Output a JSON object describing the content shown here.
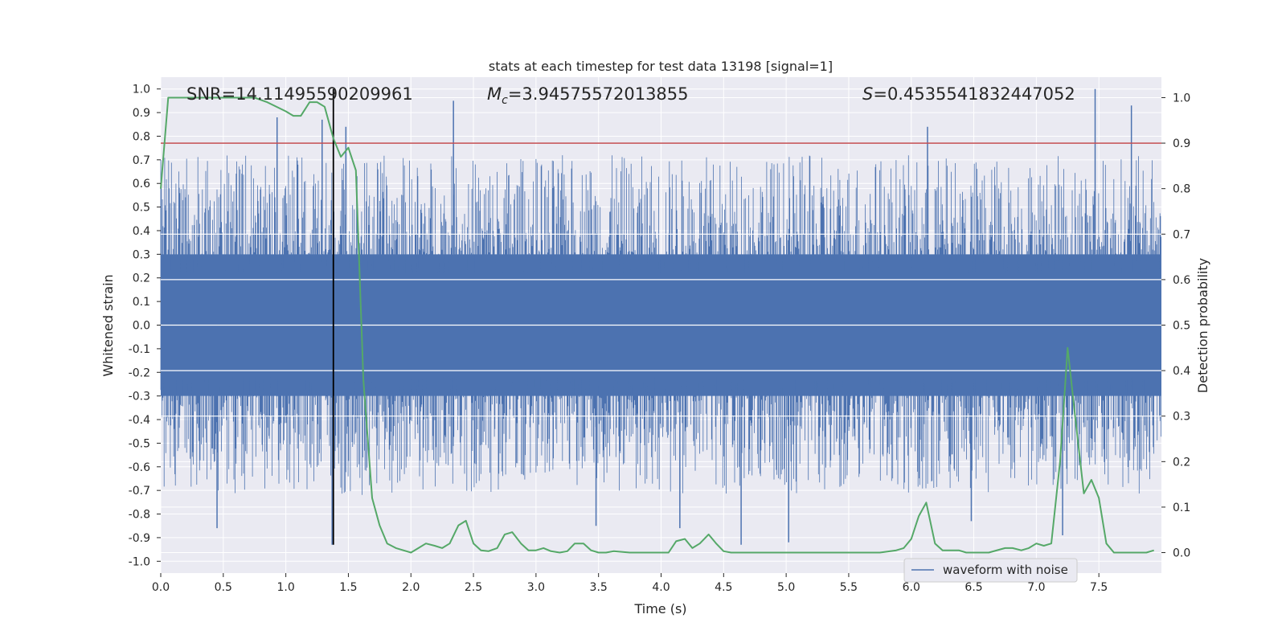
{
  "chart_data": {
    "type": "line",
    "title": "stats at each timestep for test data 13198 [signal=1]",
    "xlabel": "Time (s)",
    "ylabel_left": "Whitened strain",
    "ylabel_right": "Detection probability",
    "xlim": [
      0.0,
      8.0
    ],
    "ylim_left": [
      -1.05,
      1.05
    ],
    "ylim_right": [
      -0.045,
      1.045
    ],
    "x_ticks": [
      "0.0",
      "0.5",
      "1.0",
      "1.5",
      "2.0",
      "2.5",
      "3.0",
      "3.5",
      "4.0",
      "4.5",
      "5.0",
      "5.5",
      "6.0",
      "6.5",
      "7.0",
      "7.5"
    ],
    "y_left_ticks": [
      "-1.0",
      "-0.9",
      "-0.8",
      "-0.7",
      "-0.6",
      "-0.5",
      "-0.4",
      "-0.3",
      "-0.2",
      "-0.1",
      "0.0",
      "0.1",
      "0.2",
      "0.3",
      "0.4",
      "0.5",
      "0.6",
      "0.7",
      "0.8",
      "0.9",
      "1.0"
    ],
    "y_right_ticks": [
      "0.0",
      "0.1",
      "0.2",
      "0.3",
      "0.4",
      "0.5",
      "0.6",
      "0.7",
      "0.8",
      "0.9",
      "1.0"
    ],
    "grid": true,
    "legend_position": "lower-right",
    "annotations": {
      "snr": {
        "prefix": "SNR",
        "value": "=14.11495590209961"
      },
      "mc": {
        "symbol": "M",
        "subscript": "c",
        "value": "=3.94575572013855"
      },
      "s": {
        "symbol": "S",
        "value": "=0.4535541832447052"
      }
    },
    "threshold_right": 0.9,
    "event_time": 1.38,
    "series": [
      {
        "name": "waveform with noise",
        "axis": "left",
        "color": "#4c72b0",
        "kind": "noise_band",
        "band_core": 0.3,
        "band_extent": 0.45,
        "notable_spikes": [
          {
            "x": 0.93,
            "y": 0.88
          },
          {
            "x": 1.29,
            "y": 0.87
          },
          {
            "x": 1.48,
            "y": 0.84
          },
          {
            "x": 2.34,
            "y": 0.95
          },
          {
            "x": 6.13,
            "y": 0.84
          },
          {
            "x": 7.47,
            "y": 1.0
          },
          {
            "x": 7.76,
            "y": 0.93
          },
          {
            "x": 0.45,
            "y": -0.86
          },
          {
            "x": 1.37,
            "y": -0.93
          },
          {
            "x": 3.48,
            "y": -0.85
          },
          {
            "x": 4.15,
            "y": -0.86
          },
          {
            "x": 4.64,
            "y": -0.93
          },
          {
            "x": 5.02,
            "y": -0.92
          },
          {
            "x": 6.48,
            "y": -0.83
          },
          {
            "x": 7.21,
            "y": -0.89
          }
        ]
      },
      {
        "name": "",
        "axis": "right",
        "color": "#55a868",
        "x": [
          0.0,
          0.06,
          0.12,
          0.25,
          0.5,
          0.75,
          0.85,
          1.0,
          1.06,
          1.12,
          1.19,
          1.25,
          1.31,
          1.38,
          1.44,
          1.5,
          1.56,
          1.62,
          1.69,
          1.75,
          1.81,
          1.88,
          2.0,
          2.06,
          2.12,
          2.19,
          2.25,
          2.31,
          2.38,
          2.44,
          2.5,
          2.56,
          2.62,
          2.69,
          2.75,
          2.81,
          2.88,
          2.94,
          3.0,
          3.06,
          3.12,
          3.19,
          3.25,
          3.31,
          3.38,
          3.44,
          3.5,
          3.56,
          3.62,
          3.75,
          3.88,
          4.0,
          4.06,
          4.12,
          4.19,
          4.25,
          4.31,
          4.38,
          4.44,
          4.5,
          4.56,
          4.62,
          4.75,
          5.0,
          5.25,
          5.5,
          5.75,
          5.88,
          5.94,
          6.0,
          6.06,
          6.12,
          6.19,
          6.25,
          6.31,
          6.38,
          6.44,
          6.5,
          6.62,
          6.75,
          6.81,
          6.88,
          6.94,
          7.0,
          7.06,
          7.12,
          7.19,
          7.25,
          7.31,
          7.38,
          7.44,
          7.5,
          7.56,
          7.62,
          7.75,
          7.88,
          7.94
        ],
        "y": [
          0.8,
          1.0,
          1.0,
          1.0,
          1.0,
          1.0,
          0.99,
          0.97,
          0.96,
          0.96,
          0.99,
          0.99,
          0.98,
          0.91,
          0.87,
          0.89,
          0.84,
          0.38,
          0.12,
          0.06,
          0.02,
          0.01,
          0.0,
          0.01,
          0.02,
          0.015,
          0.01,
          0.02,
          0.06,
          0.07,
          0.02,
          0.005,
          0.003,
          0.01,
          0.04,
          0.045,
          0.02,
          0.005,
          0.005,
          0.01,
          0.003,
          0.0,
          0.003,
          0.02,
          0.02,
          0.005,
          0.0,
          0.0,
          0.003,
          0.0,
          0.0,
          0.0,
          0.0,
          0.025,
          0.03,
          0.01,
          0.02,
          0.04,
          0.02,
          0.003,
          0.0,
          0.0,
          0.0,
          0.0,
          0.0,
          0.0,
          0.0,
          0.005,
          0.01,
          0.03,
          0.08,
          0.11,
          0.02,
          0.005,
          0.005,
          0.005,
          0.0,
          0.0,
          0.0,
          0.01,
          0.01,
          0.005,
          0.01,
          0.02,
          0.015,
          0.02,
          0.2,
          0.45,
          0.3,
          0.13,
          0.16,
          0.12,
          0.02,
          0.0,
          0.0,
          0.0,
          0.005
        ]
      }
    ]
  }
}
